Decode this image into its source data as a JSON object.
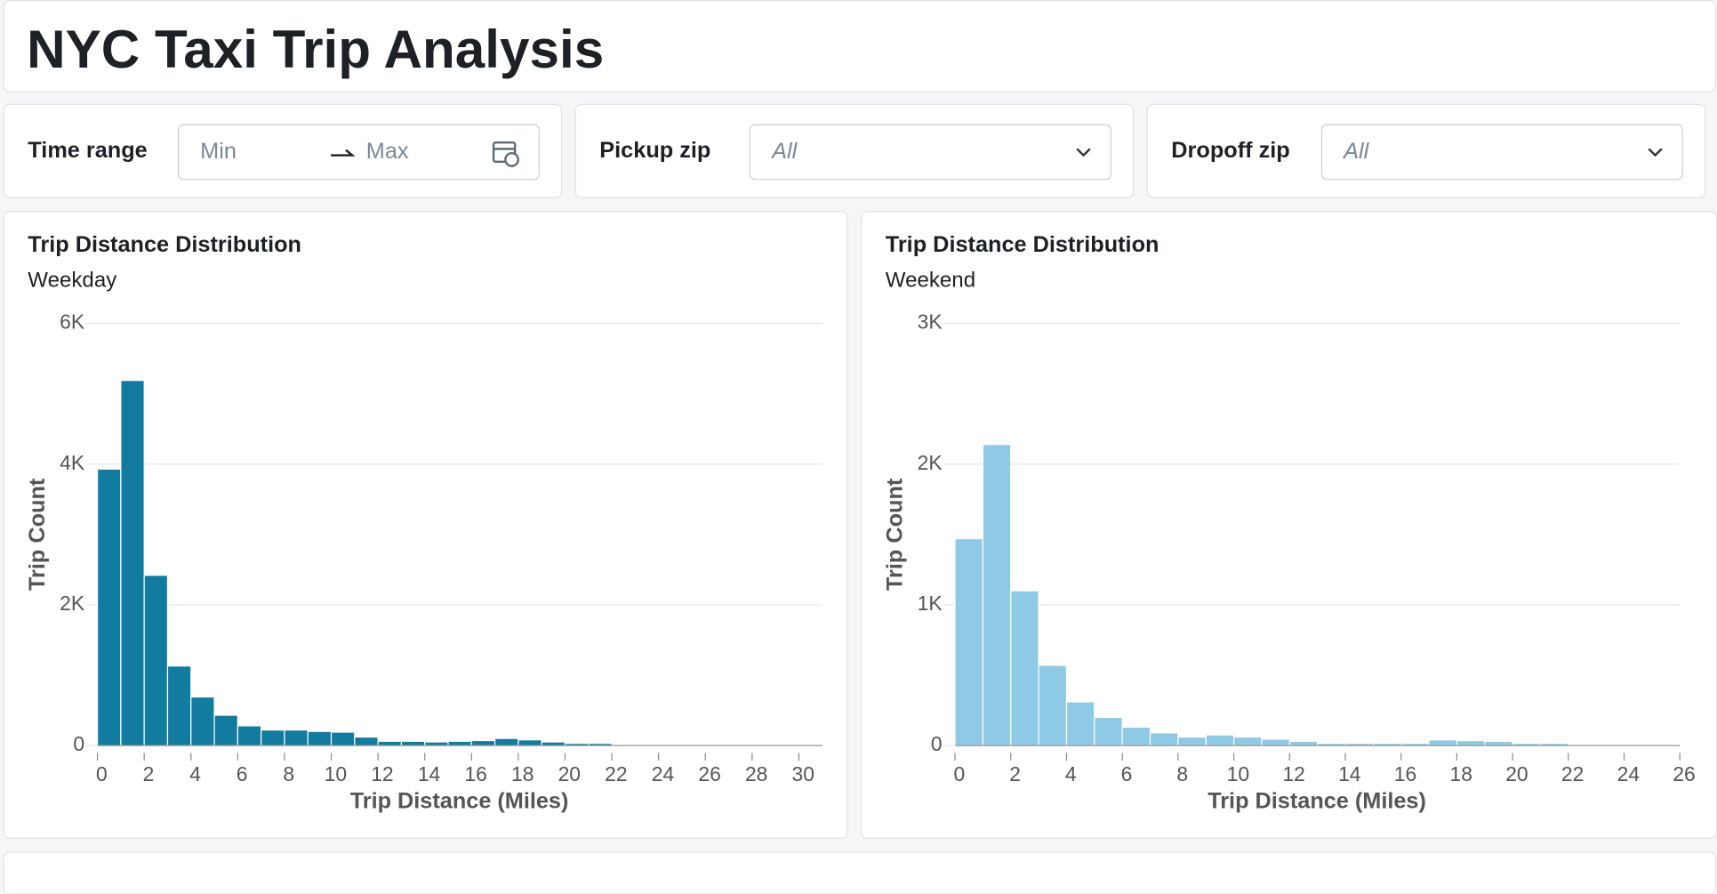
{
  "header": {
    "title": "NYC Taxi Trip Analysis"
  },
  "filters": [
    {
      "label": "Time range",
      "min": "Min",
      "max": "Max"
    },
    {
      "label": "Pickup zip",
      "value": "All"
    },
    {
      "label": "Dropoff zip",
      "value": "All"
    }
  ],
  "chart_data": [
    {
      "type": "histogram",
      "title": "Trip Distance Distribution",
      "subtitle": "Weekday",
      "x_label": "Trip Distance (Miles)",
      "y_label": "Trip Count",
      "color": "#117ba0",
      "grid": true,
      "bins": [
        0,
        1,
        2,
        3,
        4,
        5,
        6,
        7,
        8,
        9,
        10,
        11,
        12,
        13,
        14,
        15,
        16,
        17,
        18,
        19,
        20,
        21,
        22,
        23,
        24,
        25,
        26,
        27,
        28,
        29,
        30,
        31
      ],
      "values": [
        3930,
        5190,
        2420,
        1130,
        690,
        430,
        280,
        220,
        220,
        200,
        190,
        120,
        60,
        60,
        50,
        60,
        70,
        100,
        80,
        50,
        30,
        30,
        10,
        5,
        10,
        5,
        0,
        0,
        0,
        0,
        0
      ],
      "xlim": [
        0,
        31
      ],
      "xticks": [
        0,
        2,
        4,
        6,
        8,
        10,
        12,
        14,
        16,
        18,
        20,
        22,
        24,
        26,
        28,
        30
      ],
      "ylim": [
        0,
        6000
      ],
      "yticks": [
        0,
        {
          "value": 2000,
          "label": "2K"
        },
        {
          "value": 4000,
          "label": "4K"
        },
        {
          "value": 6000,
          "label": "6K"
        }
      ]
    },
    {
      "type": "histogram",
      "title": "Trip Distance Distribution",
      "subtitle": "Weekend",
      "x_label": "Trip Distance (Miles)",
      "y_label": "Trip Count",
      "color": "#8ecae6",
      "grid": true,
      "bins": [
        0,
        1,
        2,
        3,
        4,
        5,
        6,
        7,
        8,
        9,
        10,
        11,
        12,
        13,
        14,
        15,
        16,
        17,
        18,
        19,
        20,
        21,
        22,
        23,
        24,
        25,
        26
      ],
      "values": [
        1470,
        2140,
        1100,
        570,
        310,
        200,
        130,
        90,
        60,
        75,
        60,
        45,
        30,
        15,
        15,
        15,
        15,
        40,
        35,
        30,
        15,
        15,
        5,
        3,
        3,
        3
      ],
      "xlim": [
        0,
        26
      ],
      "xticks": [
        0,
        2,
        4,
        6,
        8,
        10,
        12,
        14,
        16,
        18,
        20,
        22,
        24,
        26
      ],
      "ylim": [
        0,
        3000
      ],
      "yticks": [
        0,
        {
          "value": 1000,
          "label": "1K"
        },
        {
          "value": 2000,
          "label": "2K"
        },
        {
          "value": 3000,
          "label": "3K"
        }
      ]
    }
  ]
}
